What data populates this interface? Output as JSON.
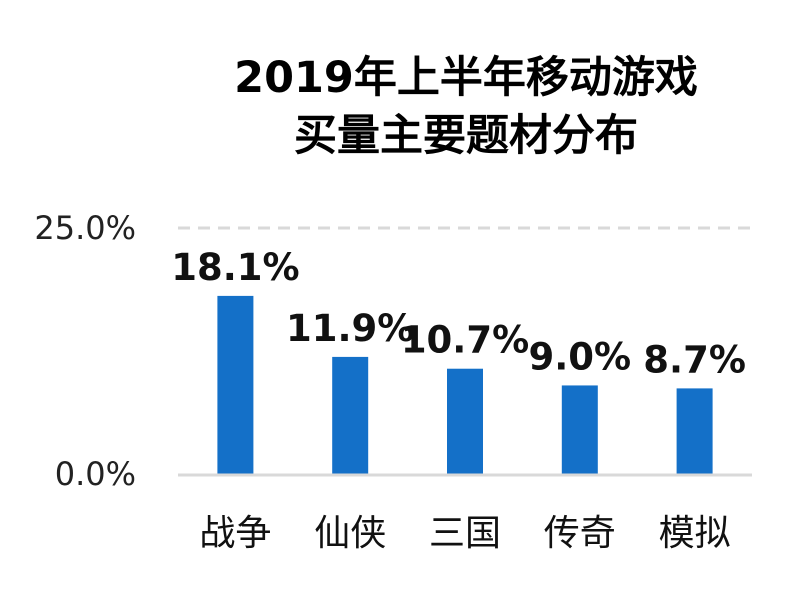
{
  "chart_data": {
    "type": "bar",
    "title_lines": [
      "2019年上半年移动游戏",
      "买量主要题材分布"
    ],
    "categories": [
      "战争",
      "仙侠",
      "三国",
      "传奇",
      "模拟"
    ],
    "values": [
      18.1,
      11.9,
      10.7,
      9.0,
      8.7
    ],
    "value_labels": [
      "18.1%",
      "11.9%",
      "10.7%",
      "9.0%",
      "8.7%"
    ],
    "ylim": [
      0,
      25
    ],
    "y_ticks": [
      0,
      25
    ],
    "y_tick_labels": [
      "0.0%",
      "25.0%"
    ],
    "xlabel": "",
    "ylabel": "",
    "grid": "top line dashed",
    "legend": "none",
    "colors": {
      "bar": "#1470C8",
      "axis": "#d9d9d9",
      "grid": "#d9d9d9"
    }
  }
}
